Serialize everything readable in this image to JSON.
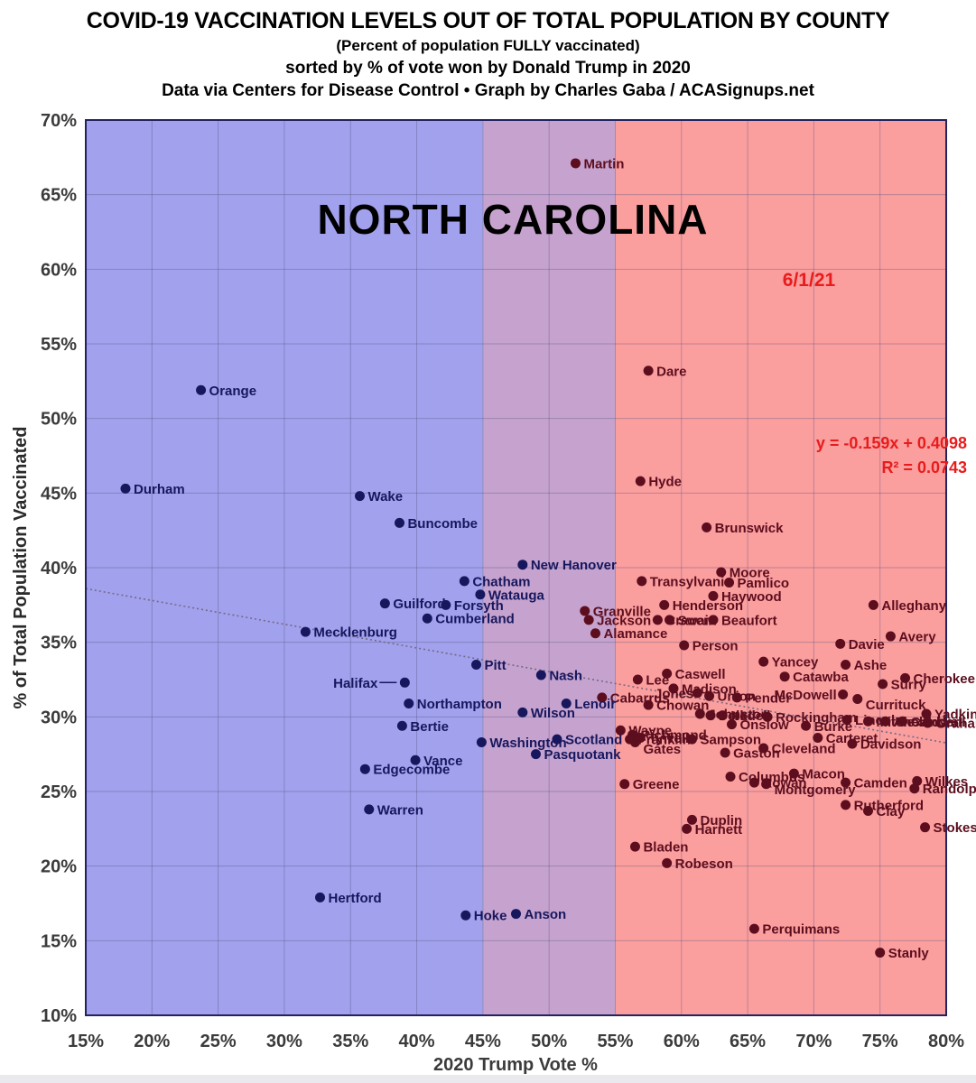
{
  "header": {
    "title": "COVID-19 VACCINATION LEVELS OUT OF TOTAL POPULATION BY COUNTY",
    "subtitle1": "(Percent of population FULLY vaccinated)",
    "subtitle2": "sorted by % of vote won by Donald Trump in 2020",
    "subtitle3": "Data via Centers for Disease Control • Graph by Charles Gaba / ACASignups.net"
  },
  "chart_data": {
    "type": "scatter",
    "state_annotation": "NORTH CAROLINA",
    "date_annotation": "6/1/21",
    "regression_label_line1": "y = -0.159x + 0.4098",
    "regression_label_line2": "R² = 0.0743",
    "xlabel": "2020 Trump Vote %",
    "ylabel": "% of Total Population Vaccinated",
    "xlim": [
      15,
      80
    ],
    "ylim": [
      10,
      70
    ],
    "x_ticks": [
      "15%",
      "20%",
      "25%",
      "30%",
      "35%",
      "40%",
      "45%",
      "50%",
      "55%",
      "60%",
      "65%",
      "70%",
      "75%",
      "80%"
    ],
    "y_ticks": [
      "70%",
      "65%",
      "60%",
      "55%",
      "50%",
      "45%",
      "40%",
      "35%",
      "30%",
      "25%",
      "20%",
      "15%",
      "10%"
    ],
    "grid": true,
    "regions": [
      {
        "name": "blue-zone",
        "from": 15,
        "to": 45,
        "color": "#a1a1ed"
      },
      {
        "name": "purple-zone",
        "from": 45,
        "to": 55,
        "color": "#c6a3ce"
      },
      {
        "name": "red-zone",
        "from": 55,
        "to": 80,
        "color": "#fb9e9e"
      }
    ],
    "trendline": {
      "slope": -0.159,
      "intercept": 0.4098,
      "color": "#756a85"
    },
    "colors": {
      "navy": "#17175e",
      "maroon": "#5c0e1e",
      "annotation_red": "#e81c1c",
      "axis_text": "#3b3b3b",
      "border": "#23235f"
    },
    "points": [
      {
        "n": "Martin",
        "x": 52.0,
        "y": 67.1,
        "c": "maroon"
      },
      {
        "n": "Orange",
        "x": 23.7,
        "y": 51.9,
        "c": "navy"
      },
      {
        "n": "Dare",
        "x": 57.5,
        "y": 53.2,
        "c": "maroon"
      },
      {
        "n": "Durham",
        "x": 18.0,
        "y": 45.3,
        "c": "navy"
      },
      {
        "n": "Hyde",
        "x": 56.9,
        "y": 45.8,
        "c": "maroon"
      },
      {
        "n": "Wake",
        "x": 35.7,
        "y": 44.8,
        "c": "navy"
      },
      {
        "n": "Buncombe",
        "x": 38.7,
        "y": 43.0,
        "c": "navy"
      },
      {
        "n": "Brunswick",
        "x": 61.9,
        "y": 42.7,
        "c": "maroon"
      },
      {
        "n": "New Hanover",
        "x": 48.0,
        "y": 40.2,
        "c": "navy"
      },
      {
        "n": "Moore",
        "x": 63.0,
        "y": 39.7,
        "c": "maroon"
      },
      {
        "n": "Chatham",
        "x": 43.6,
        "y": 39.1,
        "c": "navy"
      },
      {
        "n": "Transylvania",
        "x": 57.0,
        "y": 39.1,
        "c": "maroon"
      },
      {
        "n": "Pamlico",
        "x": 63.6,
        "y": 39.0,
        "c": "maroon"
      },
      {
        "n": "Watauga",
        "x": 44.8,
        "y": 38.2,
        "c": "navy"
      },
      {
        "n": "Haywood",
        "x": 62.4,
        "y": 38.1,
        "c": "maroon"
      },
      {
        "n": "Guilford",
        "x": 37.6,
        "y": 37.6,
        "c": "navy"
      },
      {
        "n": "Forsyth",
        "x": 42.2,
        "y": 37.5,
        "c": "navy"
      },
      {
        "n": "Henderson",
        "x": 58.7,
        "y": 37.5,
        "c": "maroon"
      },
      {
        "n": "Alleghany",
        "x": 74.5,
        "y": 37.5,
        "c": "maroon"
      },
      {
        "n": "Granville",
        "x": 52.7,
        "y": 37.1,
        "c": "maroon"
      },
      {
        "n": "Cumberland",
        "x": 40.8,
        "y": 36.6,
        "c": "navy"
      },
      {
        "n": "Jackson",
        "x": 53.0,
        "y": 36.5,
        "c": "maroon"
      },
      {
        "n": "Craven",
        "x": 58.2,
        "y": 36.5,
        "c": "maroon"
      },
      {
        "n": "Swain",
        "x": 59.1,
        "y": 36.5,
        "c": "maroon"
      },
      {
        "n": "Beaufort",
        "x": 62.4,
        "y": 36.5,
        "c": "maroon"
      },
      {
        "n": "Mecklenburg",
        "x": 31.6,
        "y": 35.7,
        "c": "navy"
      },
      {
        "n": "Alamance",
        "x": 53.5,
        "y": 35.6,
        "c": "maroon"
      },
      {
        "n": "Avery",
        "x": 75.8,
        "y": 35.4,
        "c": "maroon"
      },
      {
        "n": "Davie",
        "x": 72.0,
        "y": 34.9,
        "c": "maroon"
      },
      {
        "n": "Person",
        "x": 60.2,
        "y": 34.8,
        "c": "maroon"
      },
      {
        "n": "Yancey",
        "x": 66.2,
        "y": 33.7,
        "c": "maroon"
      },
      {
        "n": "Pitt",
        "x": 44.5,
        "y": 33.5,
        "c": "navy"
      },
      {
        "n": "Ashe",
        "x": 72.4,
        "y": 33.5,
        "c": "maroon"
      },
      {
        "n": "Caswell",
        "x": 58.9,
        "y": 32.9,
        "c": "maroon"
      },
      {
        "n": "Nash",
        "x": 49.4,
        "y": 32.8,
        "c": "navy"
      },
      {
        "n": "Catawba",
        "x": 67.8,
        "y": 32.7,
        "c": "maroon"
      },
      {
        "n": "Cherokee",
        "x": 76.9,
        "y": 32.6,
        "c": "maroon"
      },
      {
        "n": "Lee",
        "x": 56.7,
        "y": 32.5,
        "c": "maroon"
      },
      {
        "n": "Halifax",
        "x": 39.1,
        "y": 32.3,
        "c": "navy",
        "a": "end",
        "dx": -30,
        "conn": true
      },
      {
        "n": "Surry",
        "x": 75.2,
        "y": 32.2,
        "c": "maroon"
      },
      {
        "n": "Madison",
        "x": 59.4,
        "y": 31.9,
        "c": "maroon"
      },
      {
        "n": "Jones",
        "x": 61.2,
        "y": 31.6,
        "c": "maroon",
        "a": "end",
        "dx": -4
      },
      {
        "n": "McDowell",
        "x": 72.2,
        "y": 31.5,
        "c": "maroon",
        "a": "end",
        "dx": -7
      },
      {
        "n": "Union",
        "x": 62.1,
        "y": 31.4,
        "c": "maroon"
      },
      {
        "n": "Pender",
        "x": 64.2,
        "y": 31.3,
        "c": "maroon"
      },
      {
        "n": "Cabarrus",
        "x": 54.0,
        "y": 31.3,
        "c": "maroon"
      },
      {
        "n": "Currituck",
        "x": 73.3,
        "y": 31.2,
        "c": "maroon",
        "dy": 6
      },
      {
        "n": "Northampton",
        "x": 39.4,
        "y": 30.9,
        "c": "navy"
      },
      {
        "n": "Lenoir",
        "x": 51.3,
        "y": 30.9,
        "c": "navy"
      },
      {
        "n": "Chowan",
        "x": 57.5,
        "y": 30.8,
        "c": "maroon"
      },
      {
        "n": "Wilson",
        "x": 48.0,
        "y": 30.3,
        "c": "navy"
      },
      {
        "n": "Johnston",
        "x": 61.4,
        "y": 30.2,
        "c": "maroon"
      },
      {
        "n": "Yadkin",
        "x": 78.5,
        "y": 30.2,
        "c": "maroon"
      },
      {
        "n": "Polk",
        "x": 62.2,
        "y": 30.1,
        "c": "maroon"
      },
      {
        "n": "Iredell",
        "x": 63.1,
        "y": 30.1,
        "c": "maroon"
      },
      {
        "n": "Rockingham",
        "x": 66.5,
        "y": 30.0,
        "c": "maroon"
      },
      {
        "n": "Lincoln",
        "x": 72.5,
        "y": 29.8,
        "c": "maroon"
      },
      {
        "n": "Mitchell",
        "x": 74.1,
        "y": 29.7,
        "c": "maroon"
      },
      {
        "n": "Alexander",
        "x": 75.4,
        "y": 29.7,
        "c": "maroon"
      },
      {
        "n": "Caldwell",
        "x": 76.7,
        "y": 29.7,
        "c": "maroon"
      },
      {
        "n": "Graham",
        "x": 78.6,
        "y": 29.6,
        "c": "maroon"
      },
      {
        "n": "Onslow",
        "x": 63.8,
        "y": 29.5,
        "c": "maroon"
      },
      {
        "n": "Burke",
        "x": 69.4,
        "y": 29.4,
        "c": "maroon"
      },
      {
        "n": "Bertie",
        "x": 38.9,
        "y": 29.4,
        "c": "navy"
      },
      {
        "n": "Wayne",
        "x": 55.4,
        "y": 29.1,
        "c": "maroon"
      },
      {
        "n": "Richmond",
        "x": 56.3,
        "y": 28.8,
        "c": "maroon"
      },
      {
        "n": "Carteret",
        "x": 70.3,
        "y": 28.6,
        "c": "maroon"
      },
      {
        "n": "Tyrrell",
        "x": 56.9,
        "y": 28.6,
        "c": "maroon"
      },
      {
        "n": "Franklin",
        "x": 56.1,
        "y": 28.5,
        "c": "maroon"
      },
      {
        "n": "Scotland",
        "x": 50.6,
        "y": 28.5,
        "c": "navy"
      },
      {
        "n": "Sampson",
        "x": 60.8,
        "y": 28.5,
        "c": "maroon"
      },
      {
        "n": "Gates",
        "x": 56.5,
        "y": 28.3,
        "c": "maroon",
        "dy": 7
      },
      {
        "n": "Washington",
        "x": 44.9,
        "y": 28.3,
        "c": "navy"
      },
      {
        "n": "Davidson",
        "x": 72.9,
        "y": 28.2,
        "c": "maroon"
      },
      {
        "n": "Cleveland",
        "x": 66.2,
        "y": 27.9,
        "c": "maroon"
      },
      {
        "n": "Gaston",
        "x": 63.3,
        "y": 27.6,
        "c": "maroon"
      },
      {
        "n": "Pasquotank",
        "x": 49.0,
        "y": 27.5,
        "c": "navy"
      },
      {
        "n": "Vance",
        "x": 39.9,
        "y": 27.1,
        "c": "navy"
      },
      {
        "n": "Edgecombe",
        "x": 36.1,
        "y": 26.5,
        "c": "navy"
      },
      {
        "n": "Macon",
        "x": 68.5,
        "y": 26.2,
        "c": "maroon"
      },
      {
        "n": "Columbus",
        "x": 63.7,
        "y": 26.0,
        "c": "maroon"
      },
      {
        "n": "Rowan",
        "x": 65.5,
        "y": 25.6,
        "c": "maroon"
      },
      {
        "n": "Camden",
        "x": 72.4,
        "y": 25.6,
        "c": "maroon"
      },
      {
        "n": "Wilkes",
        "x": 77.8,
        "y": 25.7,
        "c": "maroon"
      },
      {
        "n": "Montgomery",
        "x": 66.4,
        "y": 25.5,
        "c": "maroon",
        "dy": 6
      },
      {
        "n": "Greene",
        "x": 55.7,
        "y": 25.5,
        "c": "maroon"
      },
      {
        "n": "Randolph",
        "x": 77.6,
        "y": 25.2,
        "c": "maroon"
      },
      {
        "n": "Rutherford",
        "x": 72.4,
        "y": 24.1,
        "c": "maroon"
      },
      {
        "n": "Warren",
        "x": 36.4,
        "y": 23.8,
        "c": "navy"
      },
      {
        "n": "Clay",
        "x": 74.1,
        "y": 23.7,
        "c": "maroon"
      },
      {
        "n": "Duplin",
        "x": 60.8,
        "y": 23.1,
        "c": "maroon"
      },
      {
        "n": "Stokes",
        "x": 78.4,
        "y": 22.6,
        "c": "maroon"
      },
      {
        "n": "Harnett",
        "x": 60.4,
        "y": 22.5,
        "c": "maroon"
      },
      {
        "n": "Bladen",
        "x": 56.5,
        "y": 21.3,
        "c": "maroon"
      },
      {
        "n": "Robeson",
        "x": 58.9,
        "y": 20.2,
        "c": "maroon"
      },
      {
        "n": "Hertford",
        "x": 32.7,
        "y": 17.9,
        "c": "navy"
      },
      {
        "n": "Anson",
        "x": 47.5,
        "y": 16.8,
        "c": "navy"
      },
      {
        "n": "Hoke",
        "x": 43.7,
        "y": 16.7,
        "c": "navy"
      },
      {
        "n": "Perquimans",
        "x": 65.5,
        "y": 15.8,
        "c": "maroon"
      },
      {
        "n": "Stanly",
        "x": 75.0,
        "y": 14.2,
        "c": "maroon"
      }
    ]
  }
}
